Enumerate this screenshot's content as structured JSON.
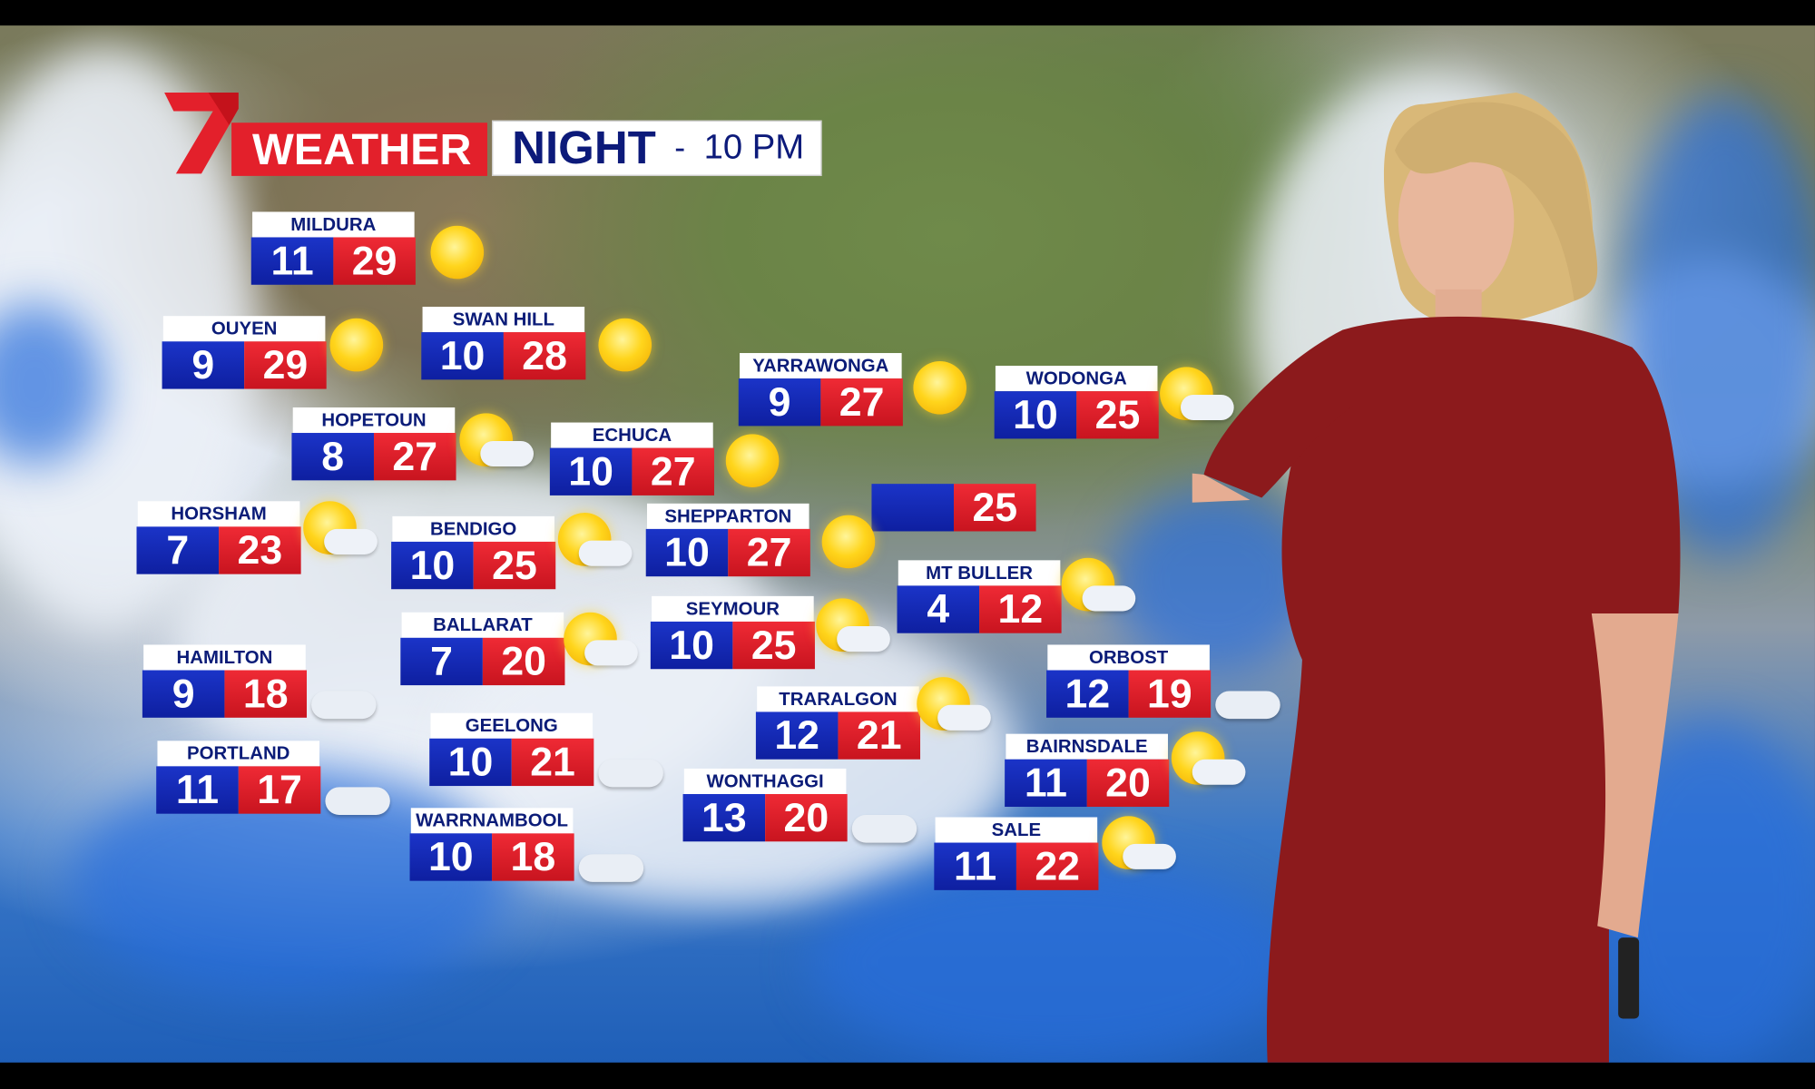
{
  "brand": {
    "logo_text": "7",
    "weather_label": "WEATHER"
  },
  "title": {
    "period": "NIGHT",
    "separator": "-",
    "time": "10 PM"
  },
  "colors": {
    "brand_red": "#e3202b",
    "min_blue": "#1529b8",
    "max_red": "#e0202b",
    "title_navy": "#0c1a7a"
  },
  "forecasts": [
    {
      "city": "MILDURA",
      "min": "11",
      "max": "29",
      "icon": "sun-icon"
    },
    {
      "city": "OUYEN",
      "min": "9",
      "max": "29",
      "icon": "sun-icon"
    },
    {
      "city": "SWAN HILL",
      "min": "10",
      "max": "28",
      "icon": "sun-icon"
    },
    {
      "city": "HOPETOUN",
      "min": "8",
      "max": "27",
      "icon": "sun-cloud-icon"
    },
    {
      "city": "ECHUCA",
      "min": "10",
      "max": "27",
      "icon": "sun-icon"
    },
    {
      "city": "YARRAWONGA",
      "min": "9",
      "max": "27",
      "icon": "sun-icon"
    },
    {
      "city": "WODONGA",
      "min": "10",
      "max": "25",
      "icon": "sun-cloud-icon"
    },
    {
      "city": "",
      "min": "",
      "max": "25",
      "icon": ""
    },
    {
      "city": "HORSHAM",
      "min": "7",
      "max": "23",
      "icon": "sun-cloud-icon"
    },
    {
      "city": "BENDIGO",
      "min": "10",
      "max": "25",
      "icon": "sun-cloud-icon"
    },
    {
      "city": "SHEPPARTON",
      "min": "10",
      "max": "27",
      "icon": "sun-icon"
    },
    {
      "city": "MT BULLER",
      "min": "4",
      "max": "12",
      "icon": "sun-cloud-icon"
    },
    {
      "city": "SEYMOUR",
      "min": "10",
      "max": "25",
      "icon": "sun-cloud-icon"
    },
    {
      "city": "BALLARAT",
      "min": "7",
      "max": "20",
      "icon": "sun-cloud-icon"
    },
    {
      "city": "HAMILTON",
      "min": "9",
      "max": "18",
      "icon": "cloud-icon"
    },
    {
      "city": "ORBOST",
      "min": "12",
      "max": "19",
      "icon": "cloud-icon"
    },
    {
      "city": "TRARALGON",
      "min": "12",
      "max": "21",
      "icon": "sun-cloud-icon"
    },
    {
      "city": "PORTLAND",
      "min": "11",
      "max": "17",
      "icon": "cloud-icon"
    },
    {
      "city": "GEELONG",
      "min": "10",
      "max": "21",
      "icon": "cloud-icon"
    },
    {
      "city": "BAIRNSDALE",
      "min": "11",
      "max": "20",
      "icon": "sun-cloud-icon"
    },
    {
      "city": "WONTHAGGI",
      "min": "13",
      "max": "20",
      "icon": "cloud-icon"
    },
    {
      "city": "WARRNAMBOOL",
      "min": "10",
      "max": "18",
      "icon": "cloud-icon"
    },
    {
      "city": "SALE",
      "min": "11",
      "max": "22",
      "icon": "sun-cloud-icon"
    }
  ]
}
